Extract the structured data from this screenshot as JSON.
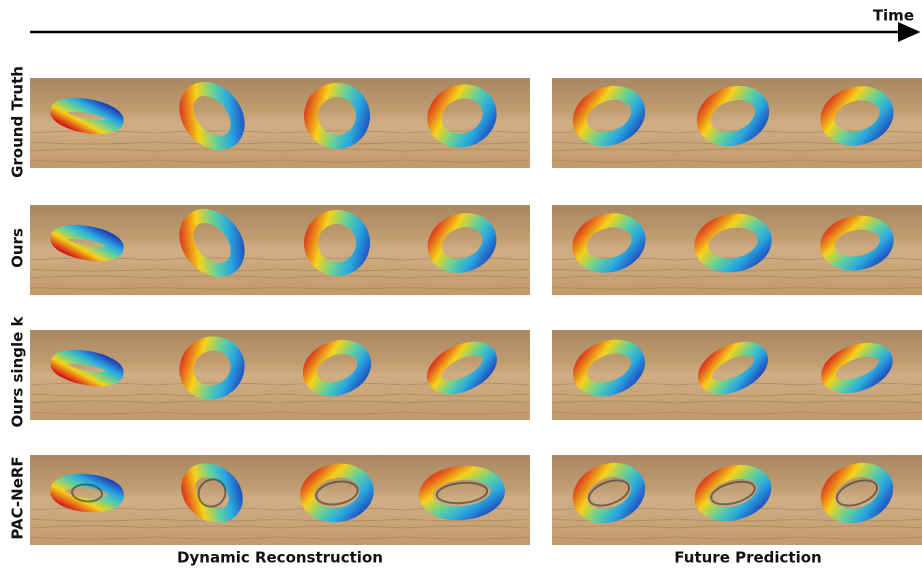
{
  "axis_label": "Time",
  "rows": [
    {
      "label": "Ground Truth"
    },
    {
      "label": "Ours"
    },
    {
      "label": "Ours single k"
    },
    {
      "label": "PAC-NeRF"
    }
  ],
  "column_groups": [
    {
      "label": "Dynamic Reconstruction"
    },
    {
      "label": "Future Prediction"
    }
  ]
}
